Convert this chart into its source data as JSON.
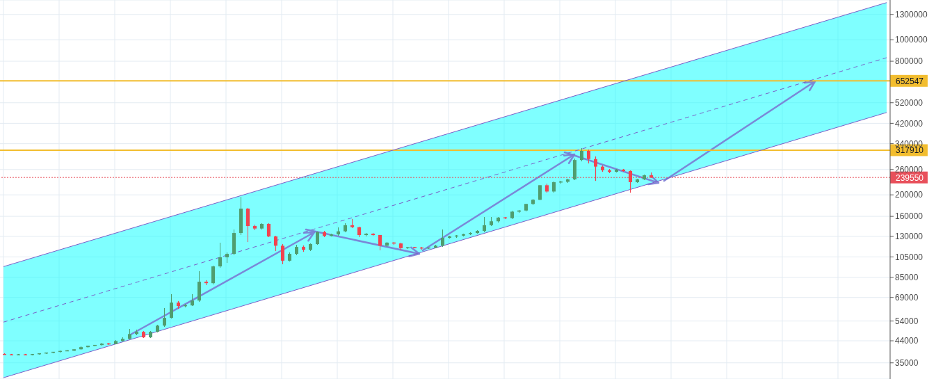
{
  "chart_data": {
    "type": "candlestick",
    "log": true,
    "grid": true,
    "tick_labels": "y",
    "ylim": [
      29600,
      1510000
    ],
    "yticks": [
      35000,
      44000,
      54000,
      69000,
      85000,
      105000,
      130000,
      160000,
      200000,
      260000,
      340000,
      420000,
      520000,
      800000,
      1000000,
      1300000
    ],
    "categories": [
      null,
      null,
      null,
      null,
      null,
      null,
      null,
      null,
      null,
      null,
      null,
      null,
      null,
      null,
      null,
      null,
      null,
      null,
      null,
      null,
      null,
      null,
      null,
      null,
      null,
      null,
      null,
      null,
      null,
      null,
      null,
      null,
      null,
      null,
      null,
      null,
      null,
      null,
      null,
      null,
      null,
      null,
      null,
      null,
      null,
      null,
      null,
      null,
      null,
      null,
      null,
      null,
      null,
      null,
      null,
      null,
      null,
      null,
      null,
      null,
      null,
      null,
      null,
      null,
      null,
      null,
      null,
      null,
      null,
      null,
      null,
      null,
      null,
      null,
      null,
      null,
      null,
      null,
      null,
      null,
      null,
      null,
      null,
      null,
      null,
      null,
      null,
      null,
      null,
      null,
      null,
      null,
      null,
      null,
      null,
      null,
      null,
      null,
      null,
      null,
      null,
      null,
      null,
      null,
      null,
      null,
      null,
      null,
      null,
      null,
      null,
      null,
      null,
      null,
      null,
      null,
      null,
      null,
      null,
      null,
      null,
      null,
      null,
      null,
      null,
      null,
      null,
      null
    ],
    "ohlc": [
      [
        38300,
        38600,
        38000,
        38100
      ],
      [
        38100,
        38400,
        37900,
        38000
      ],
      [
        38000,
        38300,
        37800,
        38100
      ],
      [
        38100,
        38400,
        37900,
        38000
      ],
      [
        38000,
        38500,
        37900,
        38300
      ],
      [
        38300,
        38700,
        38100,
        38600
      ],
      [
        38600,
        39000,
        38400,
        38900
      ],
      [
        38900,
        39300,
        38700,
        39200
      ],
      [
        39200,
        39800,
        39000,
        39600
      ],
      [
        39600,
        40000,
        39400,
        39700
      ],
      [
        39700,
        40500,
        39600,
        40300
      ],
      [
        40300,
        41400,
        40100,
        41200
      ],
      [
        41200,
        42000,
        41000,
        41800
      ],
      [
        41800,
        42300,
        41500,
        42100
      ],
      [
        42100,
        43000,
        41900,
        42700
      ],
      [
        42700,
        43000,
        42300,
        42500
      ],
      [
        42500,
        44200,
        42400,
        43900
      ],
      [
        43900,
        45500,
        43600,
        44900
      ],
      [
        44900,
        49700,
        44600,
        47200
      ],
      [
        47200,
        49500,
        46500,
        48300
      ],
      [
        48300,
        48600,
        45200,
        45600
      ],
      [
        45600,
        48600,
        45400,
        48300
      ],
      [
        48300,
        52000,
        48000,
        51500
      ],
      [
        51500,
        61700,
        51000,
        55800
      ],
      [
        55800,
        71300,
        55500,
        65400
      ],
      [
        65400,
        66500,
        61500,
        63100
      ],
      [
        63100,
        64500,
        62200,
        63500
      ],
      [
        63500,
        71300,
        63000,
        66800
      ],
      [
        66800,
        90500,
        66000,
        81200
      ],
      [
        81200,
        82500,
        78500,
        80000
      ],
      [
        80000,
        96000,
        79000,
        95200
      ],
      [
        95200,
        122000,
        94000,
        104600
      ],
      [
        104600,
        110000,
        99000,
        108400
      ],
      [
        108400,
        140000,
        107000,
        134600
      ],
      [
        134600,
        196000,
        132000,
        173400
      ],
      [
        173400,
        174000,
        122600,
        144700
      ],
      [
        144700,
        147000,
        139000,
        141000
      ],
      [
        141000,
        149000,
        140000,
        147900
      ],
      [
        147900,
        148500,
        129000,
        129900
      ],
      [
        129900,
        131000,
        112000,
        118000
      ],
      [
        118000,
        120000,
        97300,
        101000
      ],
      [
        101000,
        110000,
        100000,
        108400
      ],
      [
        108400,
        119000,
        107000,
        116500
      ],
      [
        116500,
        118000,
        111000,
        113000
      ],
      [
        113000,
        121000,
        112000,
        120000
      ],
      [
        120000,
        137000,
        119000,
        136000
      ],
      [
        136000,
        137500,
        129000,
        130500
      ],
      [
        130500,
        134000,
        129500,
        132700
      ],
      [
        132700,
        142600,
        131000,
        137000
      ],
      [
        137000,
        149000,
        136000,
        146000
      ],
      [
        146000,
        155500,
        142000,
        143000
      ],
      [
        143000,
        144000,
        129000,
        131800
      ],
      [
        131800,
        135000,
        130000,
        133600
      ],
      [
        133600,
        134500,
        130500,
        131800
      ],
      [
        131800,
        132000,
        112400,
        118000
      ],
      [
        118000,
        123000,
        117000,
        121800
      ],
      [
        121800,
        122500,
        119500,
        120800
      ],
      [
        120800,
        121500,
        112400,
        115000
      ],
      [
        115000,
        117000,
        114000,
        116000
      ],
      [
        116000,
        117000,
        114500,
        115500
      ],
      [
        115500,
        116500,
        113500,
        114900
      ],
      [
        114900,
        116000,
        113800,
        115500
      ],
      [
        115500,
        119000,
        115000,
        118000
      ],
      [
        118000,
        139600,
        117000,
        128000
      ],
      [
        128000,
        131000,
        127000,
        130000
      ],
      [
        130000,
        132000,
        128500,
        131000
      ],
      [
        131000,
        134000,
        129500,
        133000
      ],
      [
        133000,
        136000,
        132000,
        134600
      ],
      [
        134600,
        138500,
        133500,
        137600
      ],
      [
        137600,
        159000,
        136000,
        146000
      ],
      [
        146000,
        159000,
        145000,
        152000
      ],
      [
        152000,
        159500,
        150000,
        158000
      ],
      [
        158000,
        159500,
        155500,
        157000
      ],
      [
        157000,
        170000,
        156000,
        168000
      ],
      [
        168000,
        171000,
        166000,
        170000
      ],
      [
        170000,
        183000,
        169000,
        182000
      ],
      [
        182000,
        192000,
        180000,
        190000
      ],
      [
        190000,
        222000,
        189000,
        221000
      ],
      [
        221000,
        225000,
        204700,
        207000
      ],
      [
        207000,
        230000,
        205000,
        228000
      ],
      [
        228000,
        232000,
        225000,
        229000
      ],
      [
        229000,
        236000,
        226000,
        234800
      ],
      [
        234800,
        292000,
        233000,
        287000
      ],
      [
        287000,
        325000,
        283000,
        315600
      ],
      [
        315600,
        320000,
        277000,
        290000
      ],
      [
        290000,
        297000,
        231400,
        268000
      ],
      [
        268000,
        272000,
        254000,
        258000
      ],
      [
        258000,
        262000,
        251000,
        254000
      ],
      [
        254000,
        262000,
        252000,
        260000
      ],
      [
        260000,
        262000,
        254000,
        256000
      ],
      [
        256000,
        257000,
        204700,
        228000
      ],
      [
        228000,
        236000,
        226000,
        234800
      ],
      [
        234800,
        247000,
        233000,
        245000
      ],
      [
        245000,
        252000,
        238000,
        239550
      ],
      null,
      null,
      null,
      null,
      null,
      null,
      null,
      null,
      null,
      null,
      null,
      null,
      null,
      null,
      null,
      null,
      null,
      null,
      null,
      null,
      null,
      null,
      null,
      null,
      null,
      null,
      null,
      null,
      null,
      null,
      null,
      null,
      null,
      null
    ],
    "colors": [
      "#f1434f",
      "#f1434f",
      "#4f9d6f",
      "#f1434f",
      "#4f9d6f",
      "#4f9d6f",
      "#4f9d6f",
      "#4f9d6f",
      "#4f9d6f",
      "#4f9d6f",
      "#4f9d6f",
      "#4f9d6f",
      "#4f9d6f",
      "#4f9d6f",
      "#4f9d6f",
      "#f1434f",
      "#4f9d6f",
      "#4f9d6f",
      "#4f9d6f",
      "#4f9d6f",
      "#f1434f",
      "#4f9d6f",
      "#4f9d6f",
      "#4f9d6f",
      "#4f9d6f",
      "#f1434f",
      "#4f9d6f",
      "#4f9d6f",
      "#4f9d6f",
      "#f1434f",
      "#4f9d6f",
      "#4f9d6f",
      "#4f9d6f",
      "#4f9d6f",
      "#4f9d6f",
      "#f1434f",
      "#f1434f",
      "#4f9d6f",
      "#f1434f",
      "#f1434f",
      "#f1434f",
      "#4f9d6f",
      "#4f9d6f",
      "#f1434f",
      "#4f9d6f",
      "#4f9d6f",
      "#f1434f",
      "#4f9d6f",
      "#4f9d6f",
      "#4f9d6f",
      "#f1434f",
      "#f1434f",
      "#4f9d6f",
      "#f1434f",
      "#f1434f",
      "#4f9d6f",
      "#f1434f",
      "#f1434f",
      "#4f9d6f",
      "#f1434f",
      "#f1434f",
      "#4f9d6f",
      "#4f9d6f",
      "#4f9d6f",
      "#4f9d6f",
      "#4f9d6f",
      "#4f9d6f",
      "#4f9d6f",
      "#4f9d6f",
      "#4f9d6f",
      "#4f9d6f",
      "#4f9d6f",
      "#f1434f",
      "#4f9d6f",
      "#4f9d6f",
      "#4f9d6f",
      "#4f9d6f",
      "#4f9d6f",
      "#f1434f",
      "#4f9d6f",
      "#4f9d6f",
      "#4f9d6f",
      "#4f9d6f",
      "#4f9d6f",
      "#f1434f",
      "#f1434f",
      "#f1434f",
      "#f1434f",
      "#4f9d6f",
      "#f1434f",
      "#f1434f",
      "#4f9d6f",
      "#4f9d6f",
      "#f1434f",
      null,
      null,
      null,
      null,
      null,
      null,
      null,
      null,
      null,
      null,
      null,
      null,
      null,
      null,
      null,
      null,
      null,
      null,
      null,
      null,
      null,
      null,
      null,
      null,
      null,
      null,
      null,
      null,
      null,
      null,
      null,
      null,
      null,
      null
    ],
    "series": [
      {
        "type": "line",
        "color": "#7b5fc8",
        "line_style": "dashed",
        "values": [
          53400,
          null,
          null,
          null,
          null,
          null,
          null,
          null,
          null,
          null,
          null,
          null,
          null,
          null,
          null,
          null,
          null,
          null,
          null,
          null,
          null,
          null,
          null,
          null,
          null,
          null,
          null,
          null,
          null,
          null,
          null,
          null,
          null,
          null,
          null,
          null,
          null,
          null,
          null,
          null,
          null,
          null,
          null,
          null,
          null,
          null,
          null,
          null,
          null,
          null,
          null,
          null,
          null,
          null,
          null,
          null,
          null,
          null,
          null,
          null,
          null,
          null,
          null,
          null,
          null,
          null,
          null,
          null,
          null,
          null,
          null,
          null,
          null,
          null,
          null,
          null,
          null,
          null,
          null,
          null,
          null,
          null,
          null,
          null,
          null,
          null,
          null,
          null,
          null,
          null,
          null,
          null,
          null,
          null,
          null,
          null,
          null,
          null,
          null,
          null,
          null,
          null,
          null,
          null,
          null,
          null,
          null,
          null,
          null,
          null,
          null,
          null,
          null,
          null,
          null,
          null,
          null,
          null,
          null,
          null,
          null,
          null,
          null,
          null,
          null,
          null,
          null,
          830000
        ],
        "lower": [
          30000,
          null,
          null,
          null,
          null,
          null,
          null,
          null,
          null,
          null,
          null,
          null,
          null,
          null,
          null,
          null,
          null,
          null,
          null,
          null,
          null,
          null,
          null,
          null,
          null,
          null,
          null,
          null,
          null,
          null,
          null,
          null,
          null,
          null,
          null,
          null,
          null,
          null,
          null,
          null,
          null,
          null,
          null,
          null,
          null,
          null,
          null,
          null,
          null,
          null,
          null,
          null,
          null,
          null,
          null,
          null,
          null,
          null,
          null,
          null,
          null,
          null,
          null,
          null,
          null,
          null,
          null,
          null,
          null,
          null,
          null,
          null,
          null,
          null,
          null,
          null,
          null,
          null,
          null,
          null,
          null,
          null,
          null,
          null,
          null,
          null,
          null,
          null,
          null,
          null,
          null,
          null,
          null,
          null,
          null,
          null,
          null,
          null,
          null,
          null,
          null,
          null,
          null,
          null,
          null,
          null,
          null,
          null,
          null,
          null,
          null,
          null,
          null,
          null,
          null,
          null,
          null,
          null,
          null,
          null,
          null,
          null,
          null,
          null,
          null,
          null,
          null,
          470000
        ],
        "upper": [
          95000,
          null,
          null,
          null,
          null,
          null,
          null,
          null,
          null,
          null,
          null,
          null,
          null,
          null,
          null,
          null,
          null,
          null,
          null,
          null,
          null,
          null,
          null,
          null,
          null,
          null,
          null,
          null,
          null,
          null,
          null,
          null,
          null,
          null,
          null,
          null,
          null,
          null,
          null,
          null,
          null,
          null,
          null,
          null,
          null,
          null,
          null,
          null,
          null,
          null,
          null,
          null,
          null,
          null,
          null,
          null,
          null,
          null,
          null,
          null,
          null,
          null,
          null,
          null,
          null,
          null,
          null,
          null,
          null,
          null,
          null,
          null,
          null,
          null,
          null,
          null,
          null,
          null,
          null,
          null,
          null,
          null,
          null,
          null,
          null,
          null,
          null,
          null,
          null,
          null,
          null,
          null,
          null,
          null,
          null,
          null,
          null,
          null,
          null,
          null,
          null,
          null,
          null,
          null,
          null,
          null,
          null,
          null,
          null,
          null,
          null,
          null,
          null,
          null,
          null,
          null,
          null,
          null,
          null,
          null,
          null,
          null,
          null,
          null,
          null,
          null,
          null,
          1470000
        ]
      },
      {
        "type": "line",
        "color": "#7b5fc8",
        "values": [
          95000,
          null,
          null,
          null,
          null,
          null,
          null,
          null,
          null,
          null,
          null,
          null,
          null,
          null,
          null,
          null,
          null,
          null,
          null,
          null,
          null,
          null,
          null,
          null,
          null,
          null,
          null,
          null,
          null,
          null,
          null,
          null,
          null,
          null,
          null,
          null,
          null,
          null,
          null,
          null,
          null,
          null,
          null,
          null,
          null,
          null,
          null,
          null,
          null,
          null,
          null,
          null,
          null,
          null,
          null,
          null,
          null,
          null,
          null,
          null,
          null,
          null,
          null,
          null,
          null,
          null,
          null,
          null,
          null,
          null,
          null,
          null,
          null,
          null,
          null,
          null,
          null,
          null,
          null,
          null,
          null,
          null,
          null,
          null,
          null,
          null,
          null,
          null,
          null,
          null,
          null,
          null,
          null,
          null,
          null,
          null,
          null,
          null,
          null,
          null,
          null,
          null,
          null,
          null,
          null,
          null,
          null,
          null,
          null,
          null,
          null,
          null,
          null,
          null,
          null,
          null,
          null,
          null,
          null,
          null,
          null,
          null,
          null,
          null,
          null,
          null,
          null,
          1470000
        ]
      },
      {
        "type": "line",
        "color": "#7b5fc8",
        "values": [
          30000,
          null,
          null,
          null,
          null,
          null,
          null,
          null,
          null,
          null,
          null,
          null,
          null,
          null,
          null,
          null,
          null,
          null,
          null,
          null,
          null,
          null,
          null,
          null,
          null,
          null,
          null,
          null,
          null,
          null,
          null,
          null,
          null,
          null,
          null,
          null,
          null,
          null,
          null,
          null,
          null,
          null,
          null,
          null,
          null,
          null,
          null,
          null,
          null,
          null,
          null,
          null,
          null,
          null,
          null,
          null,
          null,
          null,
          null,
          null,
          null,
          null,
          null,
          null,
          null,
          null,
          null,
          null,
          null,
          null,
          null,
          null,
          null,
          null,
          null,
          null,
          null,
          null,
          null,
          null,
          null,
          null,
          null,
          null,
          null,
          null,
          null,
          null,
          null,
          null,
          null,
          null,
          null,
          null,
          null,
          null,
          null,
          null,
          null,
          null,
          null,
          null,
          null,
          null,
          null,
          null,
          null,
          null,
          null,
          null,
          null,
          null,
          null,
          null,
          null,
          null,
          null,
          null,
          null,
          null,
          null,
          null,
          null,
          null,
          null,
          null,
          null,
          470000
        ]
      }
    ],
    "ref_lines": [
      {
        "axis": "y",
        "value": 652547,
        "label": "652547",
        "color": "#f2bd2f"
      },
      {
        "axis": "y",
        "value": 317910,
        "label": "317910",
        "color": "#f2bd2f"
      },
      {
        "axis": "y",
        "value": 239550,
        "label": "239550",
        "color": "#e8505b",
        "line_style": "dotted"
      }
    ]
  }
}
